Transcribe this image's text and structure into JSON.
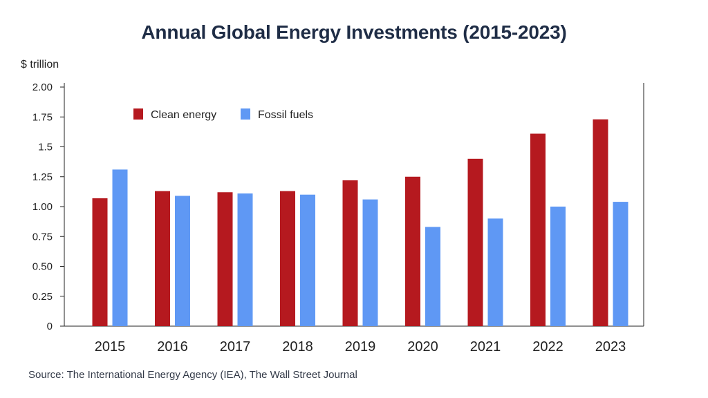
{
  "chart_data": {
    "type": "bar",
    "title": "Annual Global Energy Investments (2015-2023)",
    "ylabel": "$ trillion",
    "xlabel": "",
    "categories": [
      "2015",
      "2016",
      "2017",
      "2018",
      "2019",
      "2020",
      "2021",
      "2022",
      "2023"
    ],
    "series": [
      {
        "name": "Clean energy",
        "color": "#b5191f",
        "values": [
          1.07,
          1.13,
          1.12,
          1.13,
          1.22,
          1.25,
          1.4,
          1.61,
          1.73
        ]
      },
      {
        "name": "Fossil fuels",
        "color": "#5f98f4",
        "values": [
          1.31,
          1.09,
          1.11,
          1.1,
          1.06,
          0.83,
          0.9,
          1.0,
          1.04
        ]
      }
    ],
    "ylim": [
      0,
      2.0
    ],
    "yticks": [
      {
        "value": 0,
        "label": "0"
      },
      {
        "value": 0.25,
        "label": "0.25"
      },
      {
        "value": 0.5,
        "label": "0.50"
      },
      {
        "value": 0.75,
        "label": "0.75"
      },
      {
        "value": 1.0,
        "label": "1.00"
      },
      {
        "value": 1.25,
        "label": "1.25"
      },
      {
        "value": 1.5,
        "label": "1.5"
      },
      {
        "value": 1.75,
        "label": "1.75"
      },
      {
        "value": 2.0,
        "label": "2.00"
      }
    ],
    "legend_position": "top-left",
    "grid": false
  },
  "source": "Source: The International Energy Agency (IEA), The Wall Street Journal"
}
